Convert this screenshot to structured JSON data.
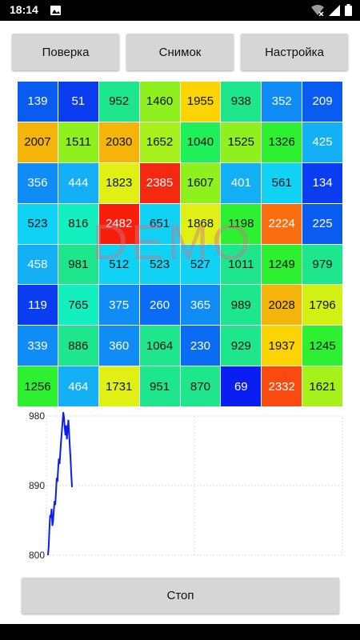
{
  "status": {
    "time": "18:14"
  },
  "buttons": {
    "verify": "Поверка",
    "snapshot": "Снимок",
    "settings": "Настройка",
    "stop": "Стоп"
  },
  "watermark": "DEMO",
  "grid": {
    "values": [
      [
        139,
        51,
        952,
        1460,
        1955,
        938,
        352,
        209
      ],
      [
        2007,
        1511,
        2030,
        1652,
        1040,
        1525,
        1326,
        425
      ],
      [
        356,
        444,
        1823,
        2385,
        1607,
        401,
        561,
        134
      ],
      [
        523,
        816,
        2482,
        651,
        1868,
        1198,
        2224,
        225
      ],
      [
        458,
        981,
        512,
        523,
        527,
        1011,
        1249,
        979
      ],
      [
        119,
        765,
        375,
        260,
        365,
        989,
        2028,
        1796
      ],
      [
        339,
        886,
        360,
        1064,
        230,
        929,
        1937,
        1245
      ],
      [
        1256,
        464,
        1731,
        951,
        870,
        69,
        2332,
        1621
      ]
    ],
    "colors": [
      [
        "#0a5cf0",
        "#0a3cf0",
        "#1ee68c",
        "#8ef01c",
        "#fcd400",
        "#1ee68c",
        "#0f8cf5",
        "#0a5cf0"
      ],
      [
        "#f5b40a",
        "#8ef01c",
        "#f5b40a",
        "#a6f01c",
        "#1ef05a",
        "#8ef01c",
        "#2cf030",
        "#14b0f5"
      ],
      [
        "#0f8cf5",
        "#14b0f5",
        "#e0f014",
        "#f52810",
        "#8ef01c",
        "#14b0f5",
        "#10d2f5",
        "#0a3cf0"
      ],
      [
        "#10d2f5",
        "#12f0c0",
        "#fa1e0a",
        "#10d2f5",
        "#e0f014",
        "#2cf030",
        "#fa6e10",
        "#0a5cf0"
      ],
      [
        "#14b0f5",
        "#1ee68c",
        "#10d2f5",
        "#10d2f5",
        "#10d2f5",
        "#1ee68c",
        "#2cf030",
        "#1ee68c"
      ],
      [
        "#0a3cf0",
        "#12f0c0",
        "#0f8cf5",
        "#0a6cf5",
        "#0f8cf5",
        "#1ee68c",
        "#f5b40a",
        "#d2f014"
      ],
      [
        "#0f8cf5",
        "#1ee68c",
        "#0f8cf5",
        "#1ee68c",
        "#0a6cf5",
        "#1ee68c",
        "#fcd400",
        "#2cf030"
      ],
      [
        "#2cf030",
        "#14b0f5",
        "#e0f014",
        "#1ee68c",
        "#1ee68c",
        "#0a1ef0",
        "#fa4a10",
        "#a6f01c"
      ]
    ]
  },
  "chart_data": {
    "type": "line",
    "y_ticks": [
      "980",
      "890",
      "800"
    ],
    "ylim": [
      800,
      980
    ],
    "grid": true,
    "series": [
      {
        "color": "#0a1ef0",
        "values": [
          800,
          812,
          835,
          852,
          848,
          860,
          838,
          845,
          858,
          870,
          865,
          882,
          900,
          895,
          912,
          925,
          918,
          935,
          948,
          960,
          972,
          985,
          978,
          965,
          955,
          968,
          950,
          962,
          975,
          958,
          940,
          925,
          905,
          888
        ]
      }
    ]
  }
}
